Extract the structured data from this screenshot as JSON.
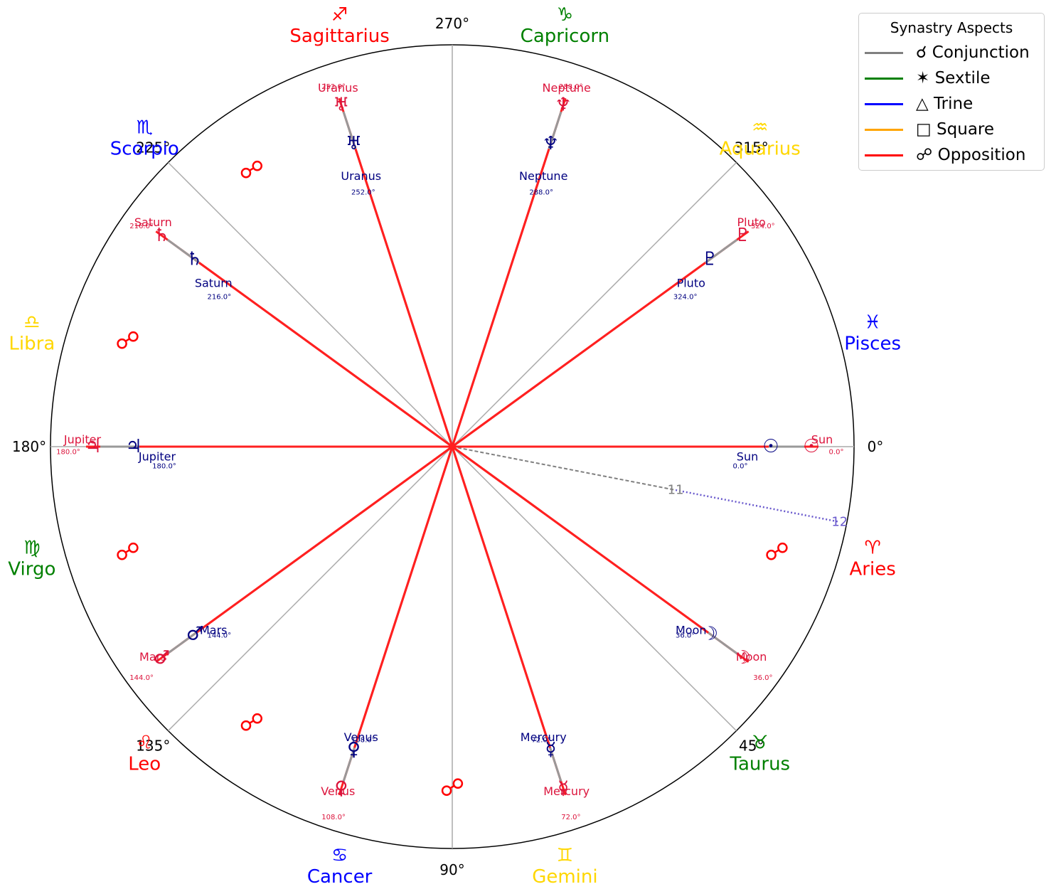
{
  "chart_data": {
    "type": "synastry-wheel",
    "title": "",
    "angle_labels": [
      "0°",
      "45°",
      "90°",
      "135°",
      "180°",
      "225°",
      "270°",
      "315°"
    ],
    "signs": [
      {
        "name": "Aries",
        "glyph": "♈",
        "color": "#ff0000",
        "deg": 15
      },
      {
        "name": "Taurus",
        "glyph": "♉",
        "color": "#008000",
        "deg": 45
      },
      {
        "name": "Gemini",
        "glyph": "♊",
        "color": "#ffd700",
        "deg": 75
      },
      {
        "name": "Cancer",
        "glyph": "♋",
        "color": "#0000ff",
        "deg": 105
      },
      {
        "name": "Leo",
        "glyph": "♌",
        "color": "#ff0000",
        "deg": 135
      },
      {
        "name": "Virgo",
        "glyph": "♍",
        "color": "#008000",
        "deg": 165
      },
      {
        "name": "Libra",
        "glyph": "♎",
        "color": "#ffd700",
        "deg": 195
      },
      {
        "name": "Scorpio",
        "glyph": "♏",
        "color": "#0000ff",
        "deg": 225
      },
      {
        "name": "Sagittarius",
        "glyph": "♐",
        "color": "#ff0000",
        "deg": 255
      },
      {
        "name": "Capricorn",
        "glyph": "♑",
        "color": "#008000",
        "deg": 285
      },
      {
        "name": "Aquarius",
        "glyph": "♒",
        "color": "#ffd700",
        "deg": 315
      },
      {
        "name": "Pisces",
        "glyph": "♓",
        "color": "#0000ff",
        "deg": 345
      }
    ],
    "chart_a": {
      "color": "#000080",
      "planets": [
        {
          "name": "Sun",
          "glyph": "☉",
          "deg": 0,
          "deg_label": "0.0°"
        },
        {
          "name": "Moon",
          "glyph": "☽",
          "deg": 36,
          "deg_label": "36.0°"
        },
        {
          "name": "Mercury",
          "glyph": "☿",
          "deg": 72,
          "deg_label": "72.0°"
        },
        {
          "name": "Venus",
          "glyph": "♀",
          "deg": 108,
          "deg_label": "108.0°"
        },
        {
          "name": "Mars",
          "glyph": "♂",
          "deg": 144,
          "deg_label": "144.0°"
        },
        {
          "name": "Jupiter",
          "glyph": "♃",
          "deg": 180,
          "deg_label": "180.0°"
        },
        {
          "name": "Saturn",
          "glyph": "♄",
          "deg": 216,
          "deg_label": "216.0°"
        },
        {
          "name": "Uranus",
          "glyph": "♅",
          "deg": 252,
          "deg_label": "252.0°"
        },
        {
          "name": "Neptune",
          "glyph": "♆",
          "deg": 288,
          "deg_label": "288.0°"
        },
        {
          "name": "Pluto",
          "glyph": "♇",
          "deg": 324,
          "deg_label": "324.0°"
        }
      ]
    },
    "chart_b": {
      "color": "#dc143c",
      "planets": [
        {
          "name": "Sun",
          "glyph": "☉",
          "deg": 0,
          "deg_label": "0.0°"
        },
        {
          "name": "Moon",
          "glyph": "☽",
          "deg": 36,
          "deg_label": "36.0°"
        },
        {
          "name": "Mercury",
          "glyph": "☿",
          "deg": 72,
          "deg_label": "72.0°"
        },
        {
          "name": "Venus",
          "glyph": "♀",
          "deg": 108,
          "deg_label": "108.0°"
        },
        {
          "name": "Mars",
          "glyph": "♂",
          "deg": 144,
          "deg_label": "144.0°"
        },
        {
          "name": "Jupiter",
          "glyph": "♃",
          "deg": 180,
          "deg_label": "180.0°"
        },
        {
          "name": "Saturn",
          "glyph": "♄",
          "deg": 216,
          "deg_label": "216.0°"
        },
        {
          "name": "Uranus",
          "glyph": "♅",
          "deg": 252,
          "deg_label": "252.0°"
        },
        {
          "name": "Neptune",
          "glyph": "♆",
          "deg": 288,
          "deg_label": "288.0°"
        },
        {
          "name": "Pluto",
          "glyph": "♇",
          "deg": 324,
          "deg_label": "324.0°"
        }
      ]
    },
    "aspects": [
      {
        "a": "Sun",
        "b": "Sun",
        "type": "Opposition"
      },
      {
        "a": "Moon",
        "b": "Moon",
        "type": "Opposition"
      },
      {
        "a": "Mercury",
        "b": "Mercury",
        "type": "Opposition"
      },
      {
        "a": "Venus",
        "b": "Venus",
        "type": "Opposition"
      },
      {
        "a": "Mars",
        "b": "Mars",
        "type": "Opposition"
      },
      {
        "a": "Jupiter",
        "b": "Jupiter",
        "type": "Opposition"
      },
      {
        "a": "Saturn",
        "b": "Saturn",
        "type": "Opposition"
      },
      {
        "a": "Uranus",
        "b": "Uranus",
        "type": "Opposition"
      },
      {
        "a": "Neptune",
        "b": "Neptune",
        "type": "Opposition"
      },
      {
        "a": "Pluto",
        "b": "Pluto",
        "type": "Opposition"
      }
    ],
    "opposition_marker_degs": [
      18,
      90,
      126,
      162,
      198,
      234
    ],
    "node_marker_deg": 11,
    "node_marker_labels": [
      "11",
      "12"
    ],
    "legend": {
      "title": "Synastry Aspects",
      "placement": "top-right",
      "items": [
        {
          "label": "☌ Conjunction",
          "color": "#808080"
        },
        {
          "label": "✶ Sextile",
          "color": "#008000"
        },
        {
          "label": "△ Trine",
          "color": "#0000ff"
        },
        {
          "label": "□ Square",
          "color": "#ffa500"
        },
        {
          "label": "☍ Opposition",
          "color": "#ff0000"
        }
      ]
    }
  }
}
